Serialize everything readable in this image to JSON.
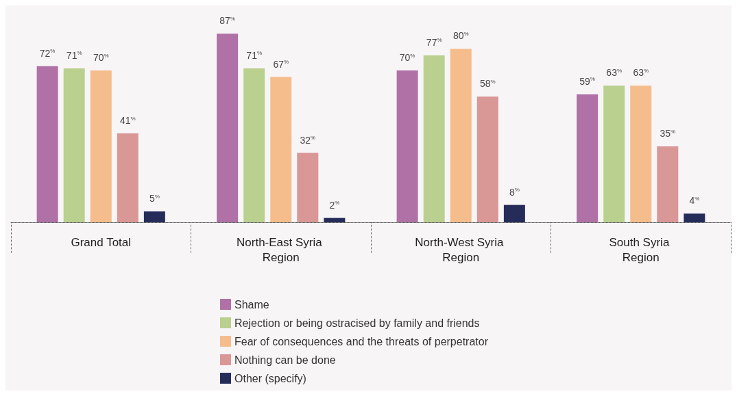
{
  "chart_data": {
    "type": "bar",
    "categories": [
      "Grand Total",
      "North-East Syria Region",
      "North-West Syria Region",
      "South Syria Region"
    ],
    "series": [
      {
        "name": "Shame",
        "color": "#b071a6",
        "values": [
          72,
          87,
          70,
          59
        ],
        "value_labels": [
          "72%",
          "87%",
          "70%",
          "59%"
        ]
      },
      {
        "name": "Rejection or being ostracised by family and friends",
        "color": "#b9d08f",
        "values": [
          71,
          71,
          77,
          63
        ],
        "value_labels": [
          "71%",
          "71%",
          "77%",
          "63%"
        ]
      },
      {
        "name": "Fear of consequences and the threats of perpetrator",
        "color": "#f5bd8c",
        "values": [
          70,
          67,
          80,
          63
        ],
        "value_labels": [
          "70%",
          "67%",
          "80%",
          "63%"
        ]
      },
      {
        "name": "Nothing can be done",
        "color": "#d99796",
        "values": [
          41,
          32,
          58,
          35
        ],
        "value_labels": [
          "41%",
          "32%",
          "58%",
          "35%"
        ]
      },
      {
        "name": "Other (specify)",
        "color": "#262c5a",
        "values": [
          5,
          2,
          8,
          4
        ],
        "value_labels": [
          "5%",
          "2%",
          "8%",
          "4%"
        ]
      }
    ],
    "legend": "bottom"
  }
}
